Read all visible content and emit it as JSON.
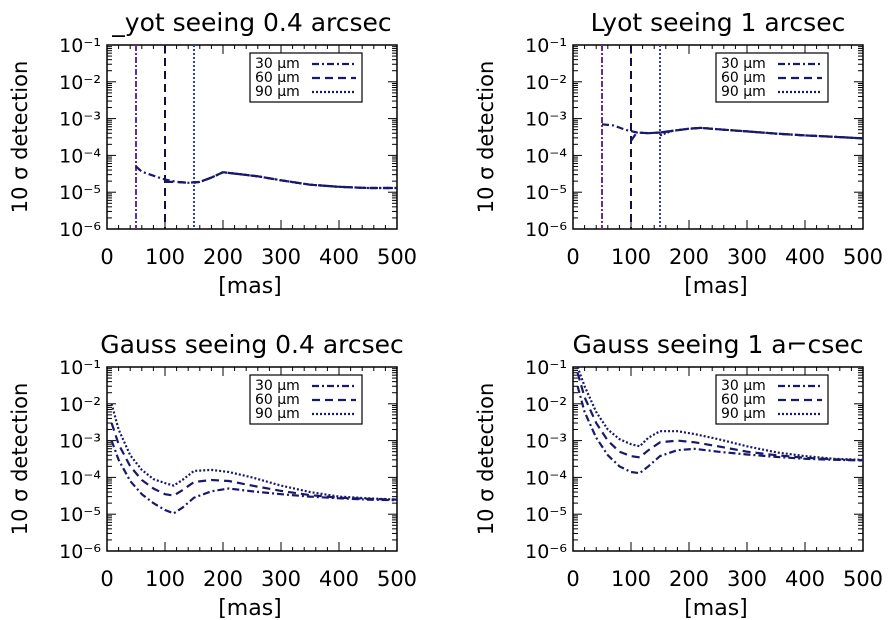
{
  "colors": {
    "line": "#18186c",
    "vline30": "#6a2a9a",
    "vline60": "#101040",
    "vline90": "#2c3cd8",
    "axis": "#000000"
  },
  "chart_data": [
    {
      "type": "line",
      "title": "_yot seeing 0.4 arcsec",
      "ylabel": "10 σ detection",
      "xlabel": "[mas]",
      "yscale": "log",
      "xlim": [
        0,
        500
      ],
      "ylim": [
        1e-06,
        0.1
      ],
      "xticks": [
        "0",
        "100",
        "200",
        "300",
        "400",
        "500"
      ],
      "yticks": [
        "10⁻⁶",
        "10⁻⁵",
        "10⁻⁴",
        "10⁻³",
        "10⁻²",
        "10⁻¹"
      ],
      "vlines": [
        50,
        100,
        150
      ],
      "legend": [
        "30 μm",
        "60 μm",
        "90 μm"
      ],
      "legend_position": "top-right",
      "series": [
        {
          "name": "30 μm",
          "style": "dashdot",
          "x": [
            50,
            60,
            80,
            100,
            120,
            140,
            160,
            180,
            200,
            220,
            260,
            300,
            350,
            400,
            450,
            500
          ],
          "y": [
            5e-05,
            3.6e-05,
            2.8e-05,
            2.2e-05,
            1.9e-05,
            1.8e-05,
            1.9e-05,
            2.5e-05,
            3.5e-05,
            3.2e-05,
            2.7e-05,
            2.1e-05,
            1.6e-05,
            1.4e-05,
            1.3e-05,
            1.3e-05
          ]
        },
        {
          "name": "60 μm",
          "style": "dashed",
          "x": [
            100,
            120,
            140,
            160,
            180,
            200,
            220,
            260,
            300,
            350,
            400,
            450,
            500
          ],
          "y": [
            1.9e-05,
            1.9e-05,
            1.8e-05,
            1.9e-05,
            2.5e-05,
            3.5e-05,
            3.2e-05,
            2.7e-05,
            2.1e-05,
            1.6e-05,
            1.4e-05,
            1.3e-05,
            1.3e-05
          ]
        },
        {
          "name": "90 μm",
          "style": "dotted",
          "x": [
            150,
            160,
            180,
            200,
            220,
            260,
            300,
            350,
            400,
            450,
            500
          ],
          "y": [
            1.8e-05,
            1.9e-05,
            2.5e-05,
            3.5e-05,
            3.2e-05,
            2.7e-05,
            2.1e-05,
            1.6e-05,
            1.4e-05,
            1.3e-05,
            1.3e-05
          ]
        }
      ]
    },
    {
      "type": "line",
      "title": "Lyot seeing 1 arcsec",
      "ylabel": "10 σ detection",
      "xlabel": "[mas]",
      "yscale": "log",
      "xlim": [
        0,
        500
      ],
      "ylim": [
        1e-06,
        0.1
      ],
      "xticks": [
        "0",
        "100",
        "200",
        "300",
        "400",
        "500"
      ],
      "yticks": [
        "10⁻⁶",
        "10⁻⁵",
        "10⁻⁴",
        "10⁻³",
        "10⁻²",
        "10⁻¹"
      ],
      "vlines": [
        50,
        100,
        150
      ],
      "legend": [
        "30 μm",
        "60 μm",
        "90 μm"
      ],
      "legend_position": "top-right",
      "series": [
        {
          "name": "30 μm",
          "style": "dashdot",
          "x": [
            50,
            70,
            90,
            110,
            130,
            150,
            170,
            200,
            220,
            260,
            300,
            350,
            400,
            450,
            500
          ],
          "y": [
            0.0007,
            0.00065,
            0.0005,
            0.00042,
            0.0004,
            0.00042,
            0.00046,
            0.00053,
            0.00056,
            0.0005,
            0.00045,
            0.00039,
            0.00035,
            0.00032,
            0.00029
          ]
        },
        {
          "name": "60 μm",
          "style": "dashed",
          "x": [
            100,
            110,
            130,
            150,
            170,
            200,
            220,
            260,
            300,
            350,
            400,
            450,
            500
          ],
          "y": [
            0.00025,
            0.00042,
            0.0004,
            0.00042,
            0.00046,
            0.00053,
            0.00056,
            0.0005,
            0.00045,
            0.00039,
            0.00035,
            0.00032,
            0.00029
          ]
        },
        {
          "name": "90 μm",
          "style": "dotted",
          "x": [
            150,
            170,
            200,
            220,
            260,
            300,
            350,
            400,
            450,
            500
          ],
          "y": [
            0.00035,
            0.00046,
            0.00053,
            0.00056,
            0.0005,
            0.00045,
            0.00039,
            0.00035,
            0.00032,
            0.00029
          ]
        }
      ]
    },
    {
      "type": "line",
      "title": "Gauss seeing 0.4 arcsec",
      "ylabel": "10 σ detection",
      "xlabel": "[mas]",
      "yscale": "log",
      "xlim": [
        0,
        500
      ],
      "ylim": [
        1e-06,
        0.1
      ],
      "xticks": [
        "0",
        "100",
        "200",
        "300",
        "400",
        "500"
      ],
      "yticks": [
        "10⁻⁶",
        "10⁻⁵",
        "10⁻⁴",
        "10⁻³",
        "10⁻²",
        "10⁻¹"
      ],
      "vlines": [],
      "legend": [
        "30 μm",
        "60 μm",
        "90 μm"
      ],
      "legend_position": "top-right",
      "series": [
        {
          "name": "30 μm",
          "style": "dashdot",
          "x": [
            8,
            20,
            40,
            60,
            80,
            100,
            115,
            130,
            150,
            180,
            210,
            250,
            300,
            350,
            400,
            450,
            500
          ],
          "y": [
            0.001,
            0.0003,
            8e-05,
            3.5e-05,
            2e-05,
            1.3e-05,
            1.05e-05,
            1.5e-05,
            2.8e-05,
            4.2e-05,
            5e-05,
            4.2e-05,
            3.5e-05,
            3e-05,
            2.7e-05,
            2.5e-05,
            2.4e-05
          ]
        },
        {
          "name": "60 μm",
          "style": "dashed",
          "x": [
            8,
            20,
            40,
            60,
            80,
            100,
            115,
            130,
            150,
            180,
            210,
            250,
            300,
            350,
            400,
            450,
            500
          ],
          "y": [
            0.003,
            0.0008,
            0.0002,
            8.5e-05,
            5e-05,
            3.5e-05,
            3.2e-05,
            4.5e-05,
            7.5e-05,
            8.5e-05,
            8e-05,
            6e-05,
            4.3e-05,
            3.3e-05,
            2.8e-05,
            2.6e-05,
            2.5e-05
          ]
        },
        {
          "name": "90 μm",
          "style": "dotted",
          "x": [
            8,
            20,
            40,
            60,
            80,
            100,
            115,
            130,
            150,
            180,
            210,
            250,
            300,
            350,
            400,
            450,
            500
          ],
          "y": [
            0.01,
            0.002,
            0.0004,
            0.00016,
            9e-05,
            7e-05,
            6e-05,
            8.5e-05,
            0.00015,
            0.00016,
            0.00014,
            0.0001,
            6e-05,
            4e-05,
            3e-05,
            2.7e-05,
            2.5e-05
          ]
        }
      ]
    },
    {
      "type": "line",
      "title": "Gauss seeing 1 a⌐csec",
      "ylabel": "10 σ detection",
      "xlabel": "[mas]",
      "yscale": "log",
      "xlim": [
        0,
        500
      ],
      "ylim": [
        1e-06,
        0.1
      ],
      "xticks": [
        "0",
        "100",
        "200",
        "300",
        "400",
        "500"
      ],
      "yticks": [
        "10⁻⁶",
        "10⁻⁵",
        "10⁻⁴",
        "10⁻³",
        "10⁻²",
        "10⁻¹"
      ],
      "vlines": [],
      "legend": [
        "30 μm",
        "60 μm",
        "90 μm"
      ],
      "legend_position": "top-right",
      "series": [
        {
          "name": "30 μm",
          "style": "dashdot",
          "x": [
            8,
            20,
            40,
            60,
            80,
            100,
            115,
            130,
            150,
            180,
            210,
            250,
            300,
            350,
            400,
            450,
            500
          ],
          "y": [
            0.03,
            0.006,
            0.0012,
            0.0004,
            0.0002,
            0.00014,
            0.00013,
            0.0002,
            0.00038,
            0.00055,
            0.0006,
            0.0005,
            0.00042,
            0.00036,
            0.00032,
            0.0003,
            0.00029
          ]
        },
        {
          "name": "60 μm",
          "style": "dashed",
          "x": [
            8,
            20,
            40,
            60,
            80,
            100,
            115,
            130,
            150,
            180,
            210,
            250,
            300,
            350,
            400,
            450,
            500
          ],
          "y": [
            0.07,
            0.015,
            0.003,
            0.001,
            0.0005,
            0.00038,
            0.00035,
            0.00055,
            0.0009,
            0.001,
            0.0009,
            0.0007,
            0.0005,
            0.0004,
            0.00034,
            0.00031,
            0.00029
          ]
        },
        {
          "name": "90 μm",
          "style": "dotted",
          "x": [
            8,
            20,
            40,
            60,
            80,
            100,
            115,
            130,
            150,
            180,
            210,
            250,
            300,
            350,
            400,
            450,
            500
          ],
          "y": [
            0.1,
            0.03,
            0.006,
            0.002,
            0.0011,
            0.0008,
            0.0007,
            0.0012,
            0.0018,
            0.0018,
            0.0015,
            0.0011,
            0.0007,
            0.00048,
            0.00038,
            0.00032,
            0.0003
          ]
        }
      ]
    }
  ]
}
